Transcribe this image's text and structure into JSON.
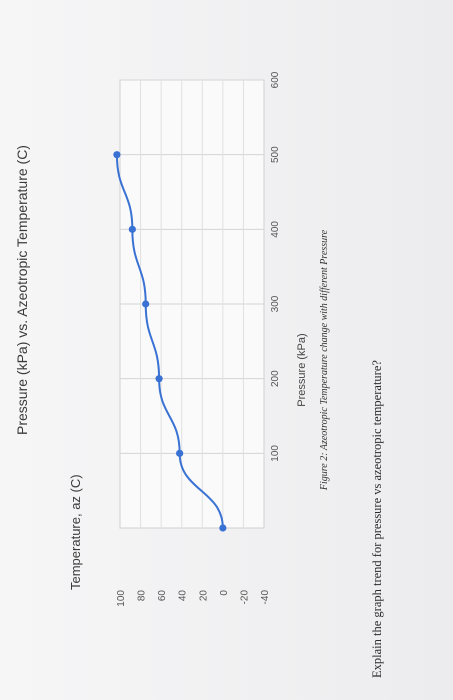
{
  "chart_data": {
    "type": "line",
    "title": "Pressure (kPa) vs. Azeotropic Temperature (C)",
    "xlabel": "Pressure (kPa)",
    "ylabel": "Temperature, az (C)",
    "xlim": [
      0,
      600
    ],
    "ylim": [
      -40,
      100
    ],
    "xticks": [
      "100",
      "200",
      "300",
      "400",
      "500",
      "600"
    ],
    "yticks": [
      "100",
      "80",
      "60",
      "40",
      "20",
      "0",
      "-20",
      "-40"
    ],
    "grid": true,
    "series": [
      {
        "color": "#3a72d4",
        "x": [
          0,
          100,
          200,
          300,
          400,
          500
        ],
        "y": [
          0,
          42,
          62,
          75,
          88,
          103
        ]
      }
    ]
  },
  "caption": "Figure 2: Azeotropic Temperature change with different Pressure",
  "question": "Explain the graph trend for pressure vs azeotropic temperature?"
}
